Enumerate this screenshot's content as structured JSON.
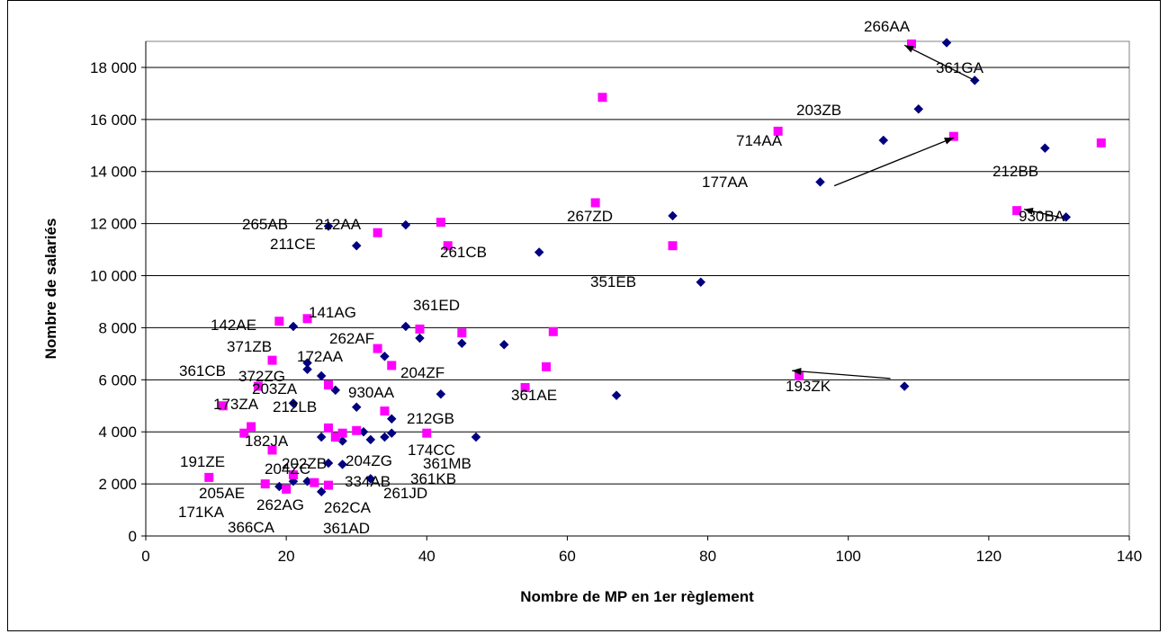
{
  "chart_data": {
    "type": "scatter",
    "xlabel": "Nombre de MP en 1er règlement",
    "ylabel": "Nombre de salariés",
    "xlim": [
      0,
      140
    ],
    "ylim": [
      0,
      19000
    ],
    "x_ticks": [
      "0",
      "20",
      "40",
      "60",
      "80",
      "100",
      "120",
      "140"
    ],
    "y_ticks": [
      "0",
      "2 000",
      "4 000",
      "6 000",
      "8 000",
      "10 000",
      "12 000",
      "14 000",
      "16 000",
      "18 000"
    ],
    "grid": "horizontal",
    "legend": "none",
    "series": [
      {
        "marker": "diamond",
        "color": "#000080",
        "x": [
          114,
          118,
          110,
          105,
          128,
          96,
          131,
          75,
          56,
          79,
          26,
          37,
          30,
          21,
          37,
          39,
          45,
          51,
          23,
          23,
          34,
          25,
          27,
          21,
          42,
          35,
          30,
          67,
          108,
          47,
          25,
          28,
          31,
          32,
          34,
          35,
          26,
          28,
          19,
          21,
          23,
          25,
          32
        ],
        "y": [
          18950,
          17500,
          16400,
          15200,
          14900,
          13600,
          12250,
          12300,
          10900,
          9750,
          11900,
          11950,
          11150,
          8050,
          8050,
          7600,
          7400,
          7350,
          6650,
          6400,
          6900,
          6150,
          5600,
          5100,
          5450,
          4500,
          4950,
          5400,
          5750,
          3800,
          3800,
          3650,
          4000,
          3700,
          3800,
          3950,
          2800,
          2750,
          1900,
          2100,
          2100,
          1700,
          2200
        ]
      },
      {
        "marker": "square",
        "color": "#ff00ff",
        "x": [
          109,
          65,
          90,
          115,
          136,
          124,
          64,
          42,
          33,
          43,
          75,
          19,
          23,
          39,
          45,
          58,
          33,
          35,
          18,
          57,
          54,
          93,
          16,
          26,
          34,
          11,
          15,
          14,
          18,
          26,
          30,
          27,
          28,
          40,
          9,
          17,
          20,
          24,
          26,
          21
        ],
        "y": [
          18900,
          16850,
          15550,
          15350,
          15100,
          12500,
          12800,
          12050,
          11650,
          11150,
          11150,
          8250,
          8350,
          7950,
          7800,
          7850,
          7200,
          6550,
          6750,
          6500,
          5700,
          6150,
          5750,
          5800,
          4800,
          5000,
          4200,
          3950,
          3300,
          4150,
          4050,
          3800,
          3950,
          3950,
          2250,
          2000,
          1800,
          2050,
          1950,
          2350
        ]
      }
    ],
    "point_labels": [
      "266AA",
      "361GA",
      "203ZB",
      "714AA",
      "212BB",
      "177AA",
      "930BA",
      "267ZD",
      "261CB",
      "351EB",
      "265AB",
      "212AA",
      "211CE",
      "142AE",
      "141AG",
      "361ED",
      "262AF",
      "371ZB",
      "172AA",
      "361CB",
      "372ZG",
      "204ZF",
      "203ZA",
      "930AA",
      "361AE",
      "193ZK",
      "173ZA",
      "212LB",
      "212GB",
      "182JA",
      "174CC",
      "191ZE",
      "202ZB",
      "204ZG",
      "361MB",
      "204ZC",
      "334AB",
      "361KB",
      "205AE",
      "261JD",
      "262AG",
      "171KA",
      "262CA",
      "366CA",
      "361AD"
    ],
    "arrows": [
      {
        "from": [
          118,
          17500
        ],
        "to": [
          108,
          18850
        ]
      },
      {
        "from": [
          98,
          13450
        ],
        "to": [
          115,
          15300
        ]
      },
      {
        "from": [
          130,
          12250
        ],
        "to": [
          125,
          12550
        ]
      },
      {
        "from": [
          106,
          6050
        ],
        "to": [
          92,
          6350
        ]
      }
    ]
  }
}
